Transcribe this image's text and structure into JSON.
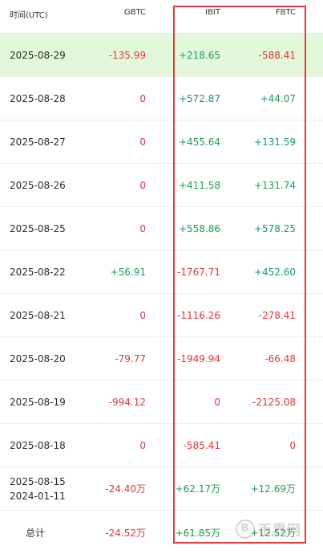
{
  "header": {
    "date_col": "时间(UTC)",
    "gbtc_col": "GBTC",
    "ibit_col": "IBIT",
    "fbtc_col": "FBTC"
  },
  "rows": [
    {
      "date": "2025-08-29",
      "gbtc": "-135.99",
      "ibit": "+218.65",
      "fbtc": "-588.41"
    },
    {
      "date": "2025-08-28",
      "gbtc": "0",
      "ibit": "+572.87",
      "fbtc": "+44.07"
    },
    {
      "date": "2025-08-27",
      "gbtc": "0",
      "ibit": "+455.64",
      "fbtc": "+131.59"
    },
    {
      "date": "2025-08-26",
      "gbtc": "0",
      "ibit": "+411.58",
      "fbtc": "+131.74"
    },
    {
      "date": "2025-08-25",
      "gbtc": "0",
      "ibit": "+558.86",
      "fbtc": "+578.25"
    },
    {
      "date": "2025-08-22",
      "gbtc": "+56.91",
      "ibit": "-1767.71",
      "fbtc": "+452.60"
    },
    {
      "date": "2025-08-21",
      "gbtc": "0",
      "ibit": "-1116.26",
      "fbtc": "-278.41"
    },
    {
      "date": "2025-08-20",
      "gbtc": "-79.77",
      "ibit": "-1949.94",
      "fbtc": "-66.48"
    },
    {
      "date": "2025-08-19",
      "gbtc": "-994.12",
      "ibit": "0",
      "fbtc": "-2125.08"
    },
    {
      "date": "2025-08-18",
      "gbtc": "0",
      "ibit": "-585.41",
      "fbtc": "0"
    }
  ],
  "range_row": {
    "date_end": "2025-08-15",
    "date_start": "2024-01-11",
    "gbtc": "-24.40万",
    "ibit": "+62.17万",
    "fbtc": "+12.69万"
  },
  "total_row": {
    "label": "总计",
    "gbtc": "-24.52万",
    "ibit": "+61.85万",
    "fbtc": "+12.52万"
  },
  "watermark": {
    "logo_glyph": "B",
    "text": "币界网"
  },
  "colors": {
    "positive": "#1a9e55",
    "negative": "#e0353b",
    "highlight_row": "#e3f8da",
    "annotation_box": "#e23b3b"
  }
}
